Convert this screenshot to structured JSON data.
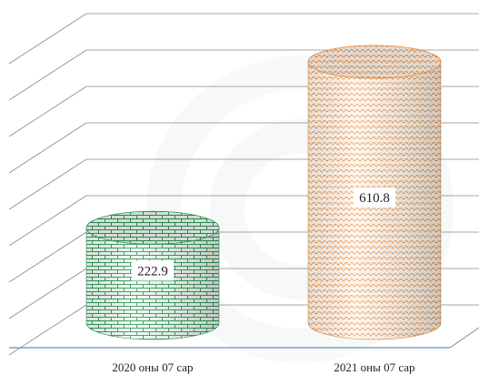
{
  "chart_data": {
    "type": "bar",
    "style": "3d-cylinder",
    "categories": [
      "2020 оны 07 сар",
      "2021 оны 07 сар"
    ],
    "values": [
      222.9,
      610.8
    ],
    "value_labels": [
      "222.9",
      "610.8"
    ],
    "ylim": [
      0,
      800
    ],
    "grid": true,
    "legend": "none",
    "colors": {
      "series_2020": "#2e9a57",
      "series_2021": "#f08a32",
      "gridline": "#8a8a8a",
      "baseline": "#6b8fb8"
    }
  }
}
